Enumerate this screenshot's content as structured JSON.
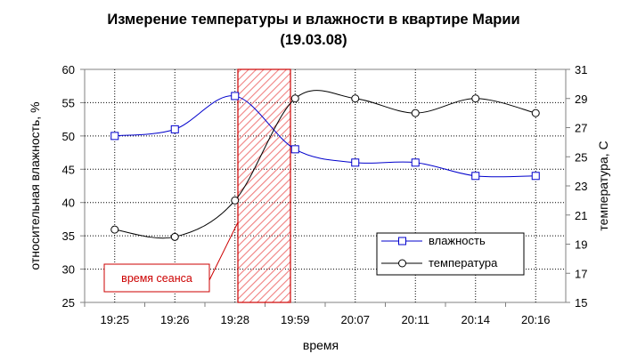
{
  "chart_data": {
    "type": "line",
    "title": "Измерение температуры и влажности в квартире Марии",
    "subtitle": "(19.03.08)",
    "xlabel": "время",
    "ylabel": "относительная влажность, %",
    "y2label": "температура, С",
    "categories": [
      "19:25",
      "19:26",
      "19:28",
      "19:59",
      "20:07",
      "20:11",
      "20:14",
      "20:16"
    ],
    "ylim": [
      25,
      60
    ],
    "yticks": [
      "25",
      "30",
      "35",
      "40",
      "45",
      "50",
      "55",
      "60"
    ],
    "y2lim": [
      15,
      31
    ],
    "y2ticks": [
      "15",
      "17",
      "19",
      "21",
      "23",
      "25",
      "27",
      "29",
      "31"
    ],
    "series": [
      {
        "name": "влажность",
        "axis": "left",
        "marker": "square",
        "color": "#0000cc",
        "values": [
          50,
          51,
          56,
          48,
          46,
          46,
          44,
          44
        ]
      },
      {
        "name": "температура",
        "axis": "right",
        "marker": "circle",
        "color": "#000000",
        "values": [
          20,
          19.5,
          22,
          29,
          29,
          28,
          29,
          28
        ]
      }
    ],
    "grid": true,
    "legend": "bottom-right",
    "annotation": {
      "label": "время сеанса",
      "color": "#cc0000",
      "from": "19:28",
      "to": "19:59"
    }
  }
}
